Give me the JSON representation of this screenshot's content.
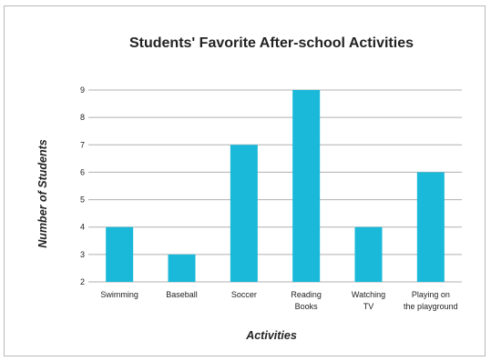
{
  "chart_data": {
    "type": "bar",
    "title": "Students' Favorite After-school Activities",
    "xlabel": "Activities",
    "ylabel": "Number of Students",
    "categories": [
      [
        "Swimming"
      ],
      [
        "Baseball"
      ],
      [
        "Soccer"
      ],
      [
        "Reading",
        "Books"
      ],
      [
        "Watching",
        "TV"
      ],
      [
        "Playing on",
        "the playground"
      ]
    ],
    "values": [
      4,
      3,
      7,
      9,
      4,
      6
    ],
    "ylim": [
      2,
      9
    ],
    "yticks": [
      2,
      3,
      4,
      5,
      6,
      7,
      8,
      9
    ],
    "grid": true,
    "bar_color": "#1ab8d9"
  }
}
